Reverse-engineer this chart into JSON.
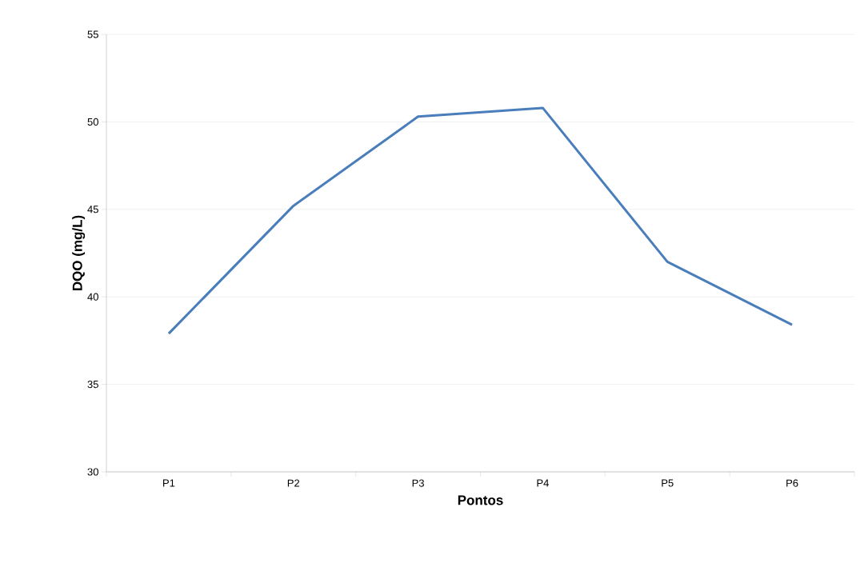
{
  "chart_data": {
    "type": "line",
    "xlabel": "Pontos",
    "ylabel": "DQO (mg/L)",
    "categories": [
      "P1",
      "P2",
      "P3",
      "P4",
      "P5",
      "P6"
    ],
    "series": [
      {
        "color": "#4a7ebb",
        "values": [
          37.9,
          45.2,
          50.3,
          50.8,
          42.0,
          38.4
        ]
      }
    ],
    "ylim": [
      30,
      55
    ],
    "yticks": [
      30,
      35,
      40,
      45,
      50,
      55
    ],
    "grid": "y",
    "marker": "none",
    "line_style": "solid"
  }
}
